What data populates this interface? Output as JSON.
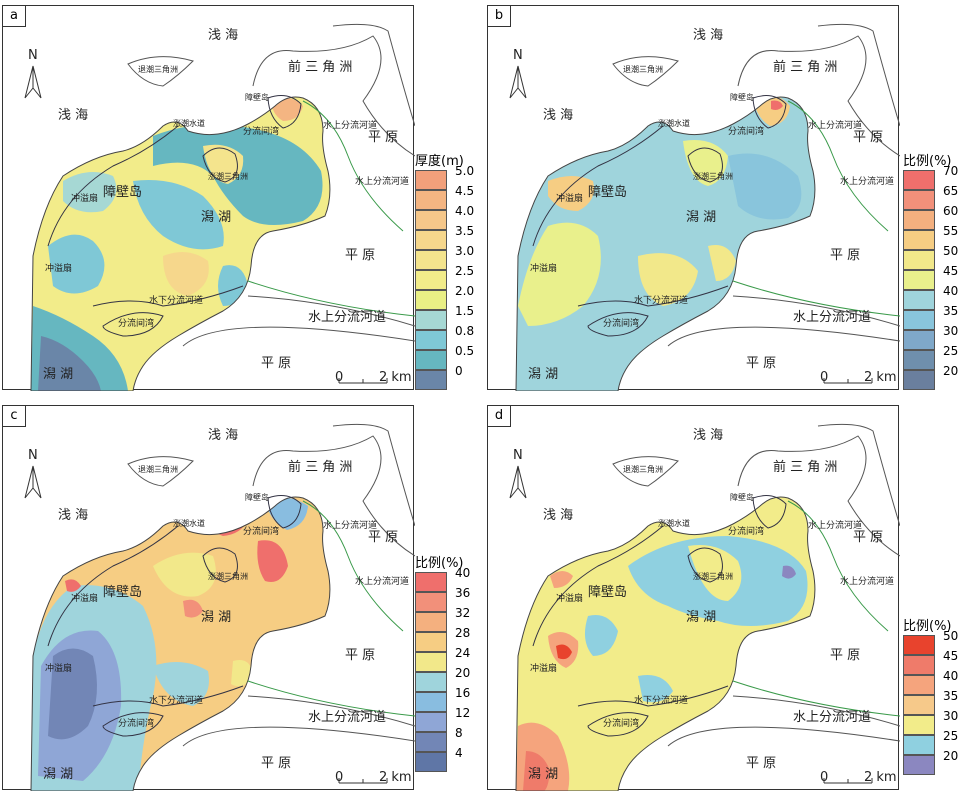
{
  "map_labels": {
    "shallow_sea": "浅  海",
    "shallow_sea_left": "浅  海",
    "front_delta": "前  三  角  洲",
    "ebb_delta": "退潮三角洲",
    "barrier_island_small": "障壁岛",
    "barrier_island": "障壁岛",
    "flood_channel": "涨潮水道",
    "interdistributary_bay": "分流间湾",
    "underwater_channel": "水下分流河道",
    "subaerial_channel": "水上分流河道",
    "plain": "平  原",
    "flood_delta": "涨潮三角洲",
    "lagoon": "潟  湖",
    "washover": "冲溢扇",
    "scale_zero": "0",
    "scale_km": "2 km",
    "north": "N"
  },
  "panels": [
    {
      "id": "a",
      "legend_title": "厚度(m)",
      "legend_values": [
        "5.0",
        "4.5",
        "4.0",
        "3.5",
        "3.0",
        "2.5",
        "2.0",
        "1.5",
        "0.8",
        "0.5",
        "0"
      ],
      "legend_colors": [
        "#f2a07b",
        "#f4b582",
        "#f5c78a",
        "#f6d78c",
        "#f4e48d",
        "#f2ec8a",
        "#e9ef85",
        "#a6d8d4",
        "#7fc8d6",
        "#66b7c0",
        "#6a86a8"
      ]
    },
    {
      "id": "b",
      "legend_title": "比例(%)",
      "legend_values": [
        "70",
        "65",
        "60",
        "55",
        "50",
        "45",
        "40",
        "35",
        "30",
        "25",
        "20"
      ],
      "legend_colors": [
        "#ef6f6c",
        "#f2907a",
        "#f4b07f",
        "#f6cd83",
        "#f2e88a",
        "#e9f08c",
        "#9fd4dc",
        "#89c5dc",
        "#7fa8c9",
        "#6f8fad",
        "#6a7f9e"
      ]
    },
    {
      "id": "c",
      "legend_title": "比例(%)",
      "legend_values": [
        "40",
        "36",
        "32",
        "28",
        "24",
        "20",
        "16",
        "12",
        "8",
        "4"
      ],
      "legend_colors": [
        "#ef6f6c",
        "#f2907a",
        "#f4b07f",
        "#f6cd83",
        "#f2e88a",
        "#9fd4dc",
        "#89bde0",
        "#8fa6d6",
        "#7286b6",
        "#5f76a6"
      ]
    },
    {
      "id": "d",
      "legend_title": "比例(%)",
      "legend_values": [
        "50",
        "45",
        "40",
        "35",
        "30",
        "25",
        "20"
      ],
      "legend_colors": [
        "#e8432d",
        "#ef7b6a",
        "#f5a47d",
        "#f6c98a",
        "#f2ec8a",
        "#8fd0e0",
        "#8b87c0"
      ]
    }
  ]
}
